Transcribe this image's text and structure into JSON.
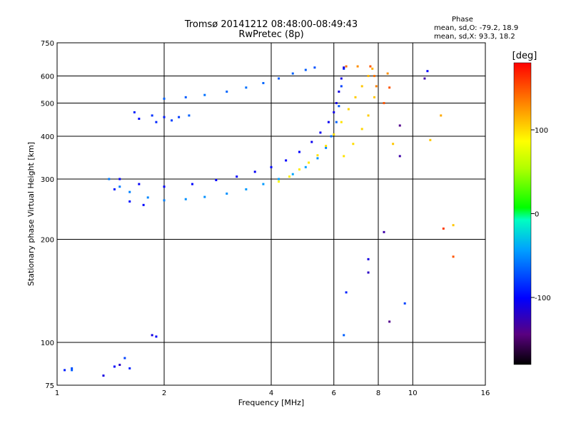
{
  "chart_data": {
    "type": "scatter",
    "title": "Tromsø 20141212 08:48:00-08:49:43",
    "subtitle": "RwPretec (8p)",
    "xlabel": "Frequency [MHz]",
    "ylabel": "Stationary phase Virtual Height [km]",
    "x_scale": "log",
    "y_scale": "log",
    "xlim": [
      1,
      16
    ],
    "ylim": [
      75,
      750
    ],
    "x_ticks": [
      1,
      2,
      4,
      6,
      8,
      10,
      16
    ],
    "x_tick_labels": [
      "1",
      "2",
      "4",
      "6",
      "8",
      "10",
      "16"
    ],
    "y_ticks": [
      75,
      100,
      200,
      300,
      400,
      500,
      600,
      750
    ],
    "y_tick_labels": [
      "75",
      "100",
      "200",
      "300",
      "400",
      "500",
      "600",
      "750"
    ],
    "grid": true,
    "legend": {
      "title": "Phase",
      "lines": [
        "mean, sd,O: -79.2, 18.9",
        "mean, sd,X:  93.3, 18.2"
      ],
      "placement": "top-right"
    },
    "colorbar": {
      "label": "[deg]",
      "range": [
        -180,
        180
      ],
      "ticks": [
        100,
        0,
        -100
      ],
      "tick_labels": [
        "100",
        "0",
        "-100"
      ],
      "colormap": "rainbow"
    },
    "series": [
      {
        "name": "",
        "points": [
          [
            1.4,
            300,
            -62
          ],
          [
            1.5,
            285,
            -62
          ],
          [
            1.6,
            275,
            -60
          ],
          [
            1.8,
            265,
            -58
          ],
          [
            2.0,
            260,
            -60
          ],
          [
            2.3,
            262,
            -55
          ],
          [
            2.6,
            266,
            -55
          ],
          [
            3.0,
            272,
            -55
          ],
          [
            3.4,
            280,
            -52
          ],
          [
            3.8,
            290,
            -52
          ],
          [
            4.2,
            300,
            -50
          ],
          [
            4.6,
            310,
            -48
          ],
          [
            5.0,
            325,
            -50
          ],
          [
            5.4,
            345,
            -55
          ],
          [
            5.7,
            370,
            -60
          ],
          [
            5.9,
            400,
            -65
          ],
          [
            6.1,
            440,
            -70
          ],
          [
            6.2,
            490,
            -75
          ],
          [
            6.3,
            560,
            -80
          ],
          [
            6.4,
            630,
            -85
          ],
          [
            1.45,
            280,
            -92
          ],
          [
            1.6,
            258,
            -95
          ],
          [
            1.75,
            252,
            -98
          ]
        ]
      },
      {
        "name": "",
        "points": [
          [
            1.5,
            300,
            -100
          ],
          [
            1.7,
            290,
            -102
          ],
          [
            2.0,
            285,
            -100
          ],
          [
            2.4,
            290,
            -98
          ],
          [
            2.8,
            298,
            -100
          ],
          [
            3.2,
            305,
            -100
          ],
          [
            3.6,
            315,
            -102
          ],
          [
            4.0,
            325,
            -98
          ],
          [
            4.4,
            340,
            -100
          ],
          [
            4.8,
            360,
            -100
          ],
          [
            5.2,
            385,
            -105
          ],
          [
            5.5,
            410,
            -105
          ],
          [
            5.8,
            440,
            -105
          ],
          [
            6.0,
            470,
            -108
          ],
          [
            6.1,
            500,
            -110
          ],
          [
            6.2,
            540,
            -110
          ],
          [
            6.3,
            590,
            -110
          ],
          [
            6.4,
            635,
            -112
          ]
        ]
      },
      {
        "name": "",
        "points": [
          [
            1.65,
            470,
            -90
          ],
          [
            1.7,
            450,
            -95
          ],
          [
            1.85,
            460,
            -85
          ],
          [
            1.9,
            440,
            -88
          ],
          [
            2.0,
            455,
            -92
          ],
          [
            2.1,
            445,
            -80
          ],
          [
            2.2,
            455,
            -82
          ],
          [
            2.35,
            460,
            -70
          ]
        ]
      },
      {
        "name": "",
        "points": [
          [
            2.0,
            515,
            -70
          ],
          [
            2.3,
            520,
            -72
          ],
          [
            2.6,
            528,
            -65
          ],
          [
            3.0,
            540,
            -68
          ],
          [
            3.4,
            555,
            -65
          ],
          [
            3.8,
            572,
            -68
          ],
          [
            4.2,
            590,
            -72
          ],
          [
            4.6,
            610,
            -70
          ],
          [
            5.0,
            625,
            -72
          ],
          [
            5.3,
            635,
            -75
          ]
        ]
      },
      {
        "name": "",
        "points": [
          [
            4.2,
            295,
            92
          ],
          [
            4.5,
            305,
            95
          ],
          [
            4.8,
            320,
            96
          ],
          [
            5.1,
            335,
            98
          ],
          [
            5.4,
            352,
            100
          ],
          [
            5.7,
            375,
            100
          ],
          [
            6.0,
            405,
            102
          ],
          [
            6.3,
            440,
            100
          ],
          [
            6.6,
            480,
            105
          ],
          [
            6.9,
            520,
            108
          ],
          [
            7.2,
            560,
            110
          ],
          [
            7.5,
            600,
            115
          ],
          [
            7.7,
            630,
            118
          ],
          [
            6.4,
            350,
            100
          ],
          [
            6.8,
            380,
            102
          ],
          [
            7.2,
            420,
            105
          ],
          [
            7.5,
            460,
            108
          ],
          [
            7.8,
            520,
            110
          ]
        ]
      },
      {
        "name": "",
        "points": [
          [
            6.5,
            640,
            140
          ],
          [
            7.0,
            640,
            130
          ],
          [
            7.6,
            640,
            150
          ],
          [
            7.8,
            600,
            140
          ],
          [
            7.9,
            560,
            135
          ]
        ]
      },
      {
        "name": "",
        "points": [
          [
            1.05,
            83,
            -90
          ],
          [
            1.1,
            84,
            -75
          ],
          [
            1.1,
            83,
            -72
          ],
          [
            1.35,
            80,
            -110
          ],
          [
            1.45,
            85,
            -100
          ],
          [
            1.5,
            86,
            -120
          ],
          [
            1.55,
            90,
            -80
          ],
          [
            1.6,
            84,
            -90
          ],
          [
            1.85,
            105,
            -110
          ],
          [
            1.9,
            104,
            -100
          ],
          [
            6.4,
            105,
            -70
          ],
          [
            6.5,
            140,
            -90
          ],
          [
            7.5,
            175,
            -110
          ],
          [
            7.5,
            160,
            -120
          ],
          [
            8.3,
            210,
            -130
          ],
          [
            8.6,
            115,
            -140
          ],
          [
            8.8,
            380,
            110
          ],
          [
            9.2,
            350,
            -130
          ],
          [
            9.2,
            430,
            -140
          ],
          [
            9.5,
            130,
            -80
          ],
          [
            10.8,
            590,
            -130
          ],
          [
            11.0,
            620,
            -100
          ],
          [
            11.2,
            390,
            110
          ],
          [
            12.0,
            460,
            120
          ],
          [
            12.2,
            215,
            160
          ],
          [
            13.0,
            220,
            110
          ],
          [
            13.0,
            178,
            150
          ],
          [
            8.6,
            555,
            150
          ],
          [
            8.5,
            610,
            130
          ],
          [
            8.3,
            500,
            150
          ]
        ]
      }
    ]
  }
}
